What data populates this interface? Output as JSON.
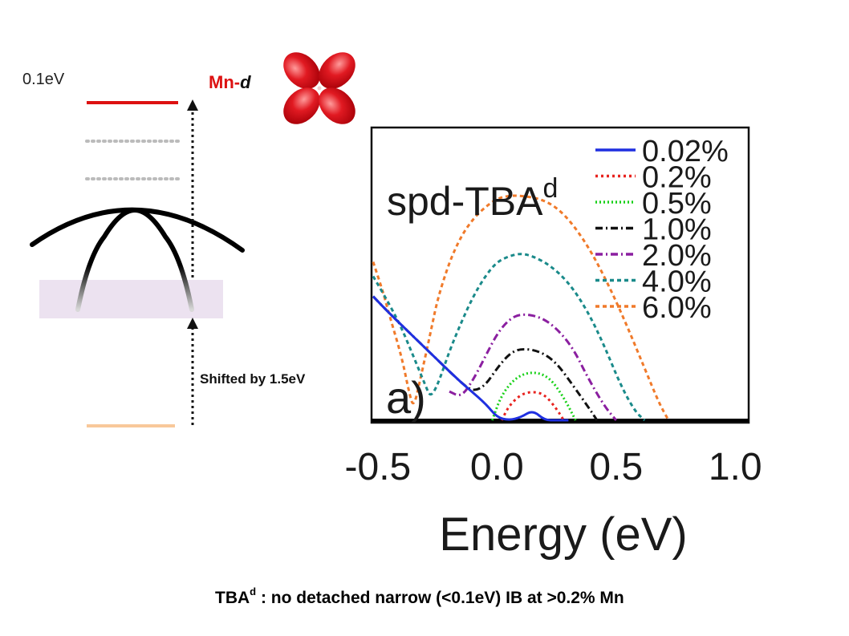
{
  "schematic": {
    "energy_gap_label": "0.1eV",
    "orbital_label_prefix": "Mn-",
    "orbital_label_suffix": "d",
    "shift_label": "Shifted by 1.5eV",
    "colors": {
      "mn_level": "#dd1111",
      "dotted_levels": "#bbbbbb",
      "band": "#000000",
      "shaded_region": "#ece2f0",
      "lower_level": "#f8c89a",
      "orbital_lobes": "#d8101a"
    }
  },
  "caption": {
    "main": "TBA",
    "superscript": "d",
    "rest": " : no detached narrow (<0.1eV) IB at >0.2% Mn"
  },
  "chart_data": {
    "type": "line",
    "title": "spd-TBA",
    "title_superscript": "d",
    "panel_label": "a)",
    "xlabel": "Energy (eV)",
    "ylabel": "",
    "xticks": [
      "-0.5",
      "0.0",
      "0.5",
      "1.0"
    ],
    "xlim": [
      -0.52,
      1.05
    ],
    "ylim": [
      0,
      1
    ],
    "legend_position": "top-right",
    "grid": false,
    "series": [
      {
        "name": "0.02%",
        "color": "#1f2fe0",
        "dash": "solid",
        "x": [
          -0.52,
          -0.45,
          -0.35,
          -0.25,
          -0.15,
          -0.05,
          0.0,
          0.05,
          0.1,
          0.15,
          0.2,
          0.25,
          0.3
        ],
        "y": [
          0.43,
          0.37,
          0.29,
          0.21,
          0.13,
          0.06,
          0.01,
          0.0,
          0.01,
          0.035,
          0.0,
          0.0,
          0.0
        ]
      },
      {
        "name": "0.2%",
        "color": "#e8231f",
        "dash": "3,4",
        "x": [
          0.02,
          0.05,
          0.1,
          0.15,
          0.2,
          0.25,
          0.28
        ],
        "y": [
          0.0,
          0.05,
          0.09,
          0.1,
          0.09,
          0.04,
          0.0
        ]
      },
      {
        "name": "0.5%",
        "color": "#1ad11a",
        "dash": "2,3",
        "x": [
          -0.02,
          0.02,
          0.08,
          0.15,
          0.22,
          0.28,
          0.33
        ],
        "y": [
          0.0,
          0.09,
          0.15,
          0.17,
          0.15,
          0.08,
          0.0
        ]
      },
      {
        "name": "1.0%",
        "color": "#111111",
        "dash": "9,4,2,4",
        "x": [
          -0.52,
          -0.45,
          -0.35,
          -0.25,
          -0.15,
          -0.1,
          -0.05,
          0.0,
          0.05,
          0.1,
          0.18,
          0.25,
          0.32,
          0.38,
          0.42
        ],
        "y": [
          0.43,
          0.37,
          0.29,
          0.21,
          0.13,
          0.1,
          0.12,
          0.18,
          0.23,
          0.25,
          0.24,
          0.2,
          0.12,
          0.05,
          0.0
        ]
      },
      {
        "name": "2.0%",
        "color": "#8b1fa0",
        "dash": "9,4,2,4",
        "x": [
          -0.2,
          -0.15,
          -0.1,
          -0.05,
          0.0,
          0.05,
          0.1,
          0.18,
          0.25,
          0.32,
          0.38,
          0.45,
          0.5
        ],
        "y": [
          0.1,
          0.08,
          0.14,
          0.22,
          0.3,
          0.35,
          0.37,
          0.36,
          0.32,
          0.25,
          0.15,
          0.05,
          0.0
        ]
      },
      {
        "name": "4.0%",
        "color": "#1a8a8a",
        "dash": "5,4",
        "x": [
          -0.52,
          -0.45,
          -0.4,
          -0.35,
          -0.3,
          -0.28,
          -0.25,
          -0.2,
          -0.15,
          -0.1,
          -0.05,
          0.0,
          0.05,
          0.1,
          0.15,
          0.22,
          0.3,
          0.38,
          0.45,
          0.52,
          0.58,
          0.62
        ],
        "y": [
          0.5,
          0.4,
          0.32,
          0.22,
          0.12,
          0.08,
          0.12,
          0.24,
          0.34,
          0.43,
          0.5,
          0.55,
          0.57,
          0.58,
          0.57,
          0.54,
          0.48,
          0.38,
          0.26,
          0.12,
          0.03,
          0.0
        ]
      },
      {
        "name": "6.0%",
        "color": "#f07a2a",
        "dash": "5,4",
        "x": [
          -0.52,
          -0.48,
          -0.45,
          -0.4,
          -0.37,
          -0.35,
          -0.32,
          -0.28,
          -0.25,
          -0.2,
          -0.15,
          -0.1,
          -0.05,
          0.0,
          0.05,
          0.1,
          0.18,
          0.25,
          0.32,
          0.4,
          0.48,
          0.55,
          0.62,
          0.68,
          0.72
        ],
        "y": [
          0.55,
          0.45,
          0.36,
          0.22,
          0.1,
          0.04,
          0.15,
          0.3,
          0.42,
          0.55,
          0.64,
          0.7,
          0.74,
          0.77,
          0.78,
          0.78,
          0.77,
          0.74,
          0.68,
          0.58,
          0.45,
          0.32,
          0.18,
          0.06,
          0.0
        ]
      }
    ]
  }
}
